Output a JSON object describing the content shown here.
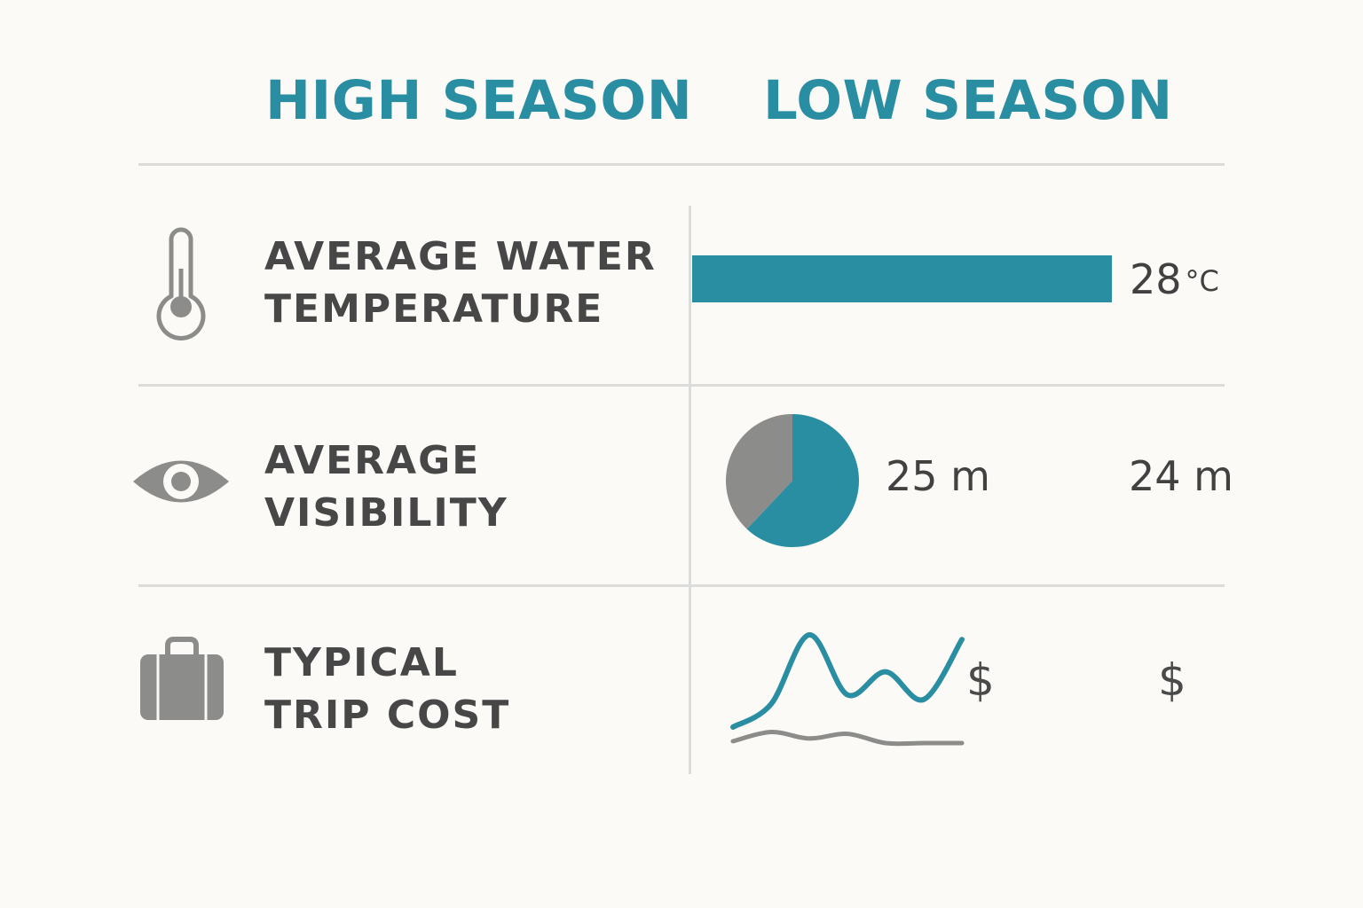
{
  "headers": {
    "high": "HIGH SEASON",
    "low": "LOW SEASON"
  },
  "colors": {
    "accent": "#2a8ea3",
    "neutral": "#8c8c8a",
    "text": "#474747",
    "divider": "#dcdcda",
    "background": "#fbfaf6"
  },
  "rows": [
    {
      "icon": "thermometer-icon",
      "label_line1": "AVERAGE WATER",
      "label_line2": "TEMPERATURE"
    },
    {
      "icon": "eye-icon",
      "label_line1": "AVERAGE",
      "label_line2": "VISIBILITY"
    },
    {
      "icon": "suitcase-icon",
      "label_line1": "TYPICAL",
      "label_line2": "TRIP COST"
    }
  ],
  "chart_data": [
    {
      "type": "bar",
      "label": "28",
      "unit": "°C",
      "value": 28
    },
    {
      "type": "pie",
      "slices": [
        {
          "share": 0.62,
          "color": "#2a8ea3"
        },
        {
          "share": 0.38,
          "color": "#8c8c8a"
        }
      ],
      "high_value_text": "25 m",
      "low_value_text": "24 m",
      "high_value": 25,
      "low_value": 24
    },
    {
      "type": "line",
      "series": [
        {
          "color": "#2a8ea3",
          "values": [
            0.0,
            0.25,
            1.0,
            0.35,
            0.6,
            0.3,
            0.95
          ]
        },
        {
          "color": "#8c8c8a",
          "values": [
            0.02,
            0.12,
            0.05,
            0.1,
            0.0,
            0.0,
            0.0
          ]
        }
      ],
      "high_symbol": "$",
      "low_symbol": "$"
    }
  ]
}
